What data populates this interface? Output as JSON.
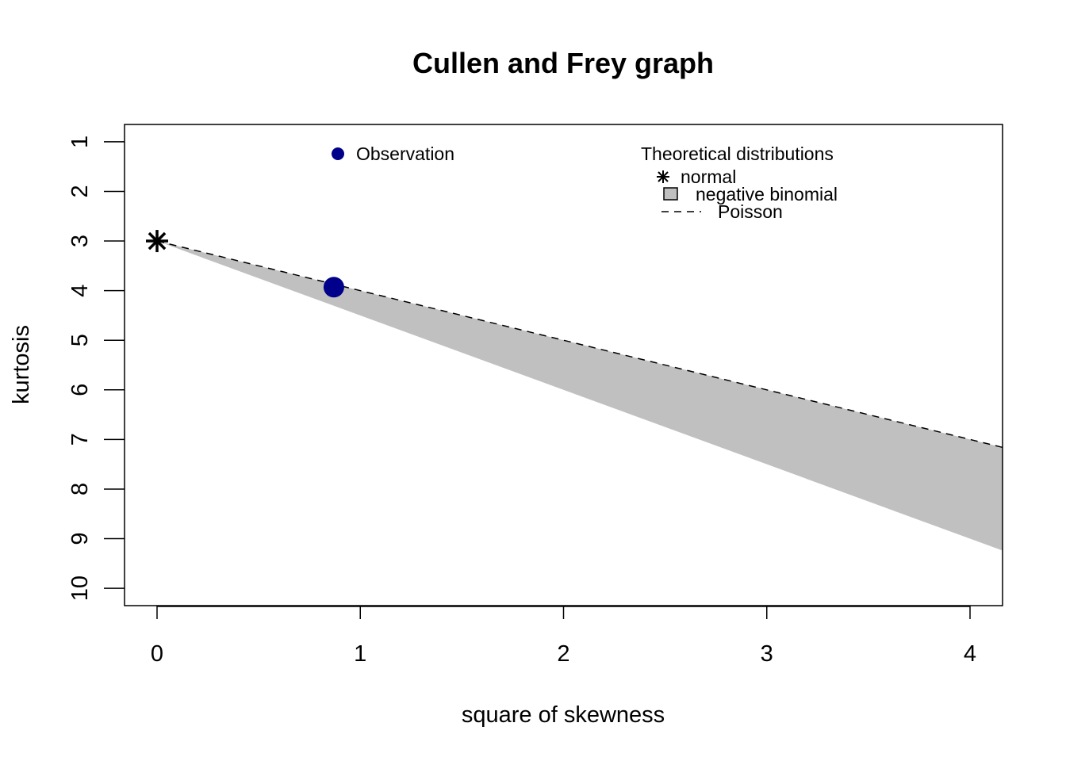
{
  "chart_data": {
    "type": "scatter",
    "title": "Cullen and Frey graph",
    "xlabel": "square of skewness",
    "ylabel": "kurtosis",
    "xlim": [
      -0.16,
      4.16
    ],
    "ylim": [
      10.35,
      0.65
    ],
    "y_axis_reversed": true,
    "x_ticks": [
      0,
      1,
      2,
      3,
      4
    ],
    "y_ticks": [
      1,
      2,
      3,
      4,
      5,
      6,
      7,
      8,
      9,
      10
    ],
    "grid": false,
    "observation": {
      "x": 0.87,
      "y": 3.93,
      "color": "#00008B"
    },
    "normal": {
      "x": 0,
      "y": 3
    },
    "negative_binomial_region": {
      "upper": [
        [
          0,
          3
        ],
        [
          4.16,
          7.16
        ]
      ],
      "lower": [
        [
          0,
          3
        ],
        [
          4.16,
          9.24
        ]
      ],
      "fill": "#C0C0C0"
    },
    "poisson_line": [
      [
        0,
        3
      ],
      [
        4.16,
        7.16
      ]
    ],
    "legend_observation": {
      "label": "Observation",
      "position": "top-left"
    },
    "legend_theoretical": {
      "title": "Theoretical distributions",
      "position": "top-right",
      "items": [
        {
          "label": "normal",
          "symbol": "asterisk"
        },
        {
          "label": "negative binomial",
          "symbol": "filled-square"
        },
        {
          "label": "Poisson",
          "symbol": "dashed-line"
        }
      ]
    }
  }
}
